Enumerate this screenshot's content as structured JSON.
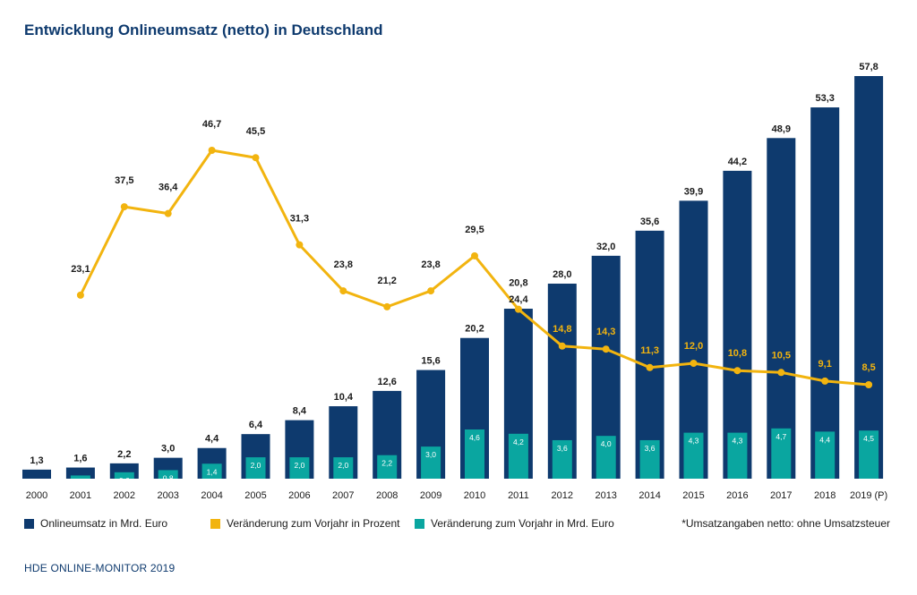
{
  "title": "Entwicklung Onlineumsatz (netto) in Deutschland",
  "colors": {
    "revenue": "#0e3a6e",
    "percent": "#f2b40f",
    "change": "#0aa6a0",
    "percent_label_on_bar": "#f2b40f"
  },
  "legend": {
    "revenue": "Onlineumsatz in Mrd. Euro",
    "percent": "Veränderung zum Vorjahr in Prozent",
    "change": "Veränderung zum Vorjahr in Mrd. Euro",
    "note": "*Umsatzangaben netto: ohne Umsatzsteuer"
  },
  "footer": "HDE ONLINE-MONITOR 2019",
  "chart_data": {
    "type": "bar",
    "title": "Entwicklung Onlineumsatz (netto) in Deutschland",
    "xlabel": "",
    "ylabel": "",
    "ylim": [
      0,
      60
    ],
    "grid": false,
    "legend_position": "bottom",
    "categories": [
      "2000",
      "2001",
      "2002",
      "2003",
      "2004",
      "2005",
      "2006",
      "2007",
      "2008",
      "2009",
      "2010",
      "2011",
      "2012",
      "2013",
      "2014",
      "2015",
      "2016",
      "2017",
      "2018",
      "2019 (P)"
    ],
    "series": [
      {
        "name": "Onlineumsatz in Mrd. Euro",
        "type": "bar",
        "values": [
          1.3,
          1.6,
          2.2,
          3.0,
          4.4,
          6.4,
          8.4,
          10.4,
          12.6,
          15.6,
          20.2,
          24.4,
          28.0,
          32.0,
          35.6,
          39.9,
          44.2,
          48.9,
          53.3,
          57.8
        ],
        "labels": [
          "1,3",
          "1,6",
          "2,2",
          "3,0",
          "4,4",
          "6,4",
          "8,4",
          "10,4",
          "12,6",
          "15,6",
          "20,2",
          "24,4",
          "28,0",
          "32,0",
          "35,6",
          "39,9",
          "44,2",
          "48,9",
          "53,3",
          "57,8"
        ]
      },
      {
        "name": "Veränderung zum Vorjahr in Mrd. Euro",
        "type": "bar",
        "values": [
          null,
          0.3,
          0.6,
          0.8,
          1.4,
          2.0,
          2.0,
          2.0,
          2.2,
          3.0,
          4.6,
          4.2,
          3.6,
          4.0,
          3.6,
          4.3,
          4.3,
          4.7,
          4.4,
          4.5
        ],
        "labels": [
          "",
          "0,3",
          "0,6",
          "0,8",
          "1,4",
          "2,0",
          "2,0",
          "2,0",
          "2,2",
          "3,0",
          "4,6",
          "4,2",
          "3,6",
          "4,0",
          "3,6",
          "4,3",
          "4,3",
          "4,7",
          "4,4",
          "4,5"
        ]
      },
      {
        "name": "Veränderung zum Vorjahr in Prozent",
        "type": "line",
        "values": [
          null,
          23.1,
          37.5,
          36.4,
          46.7,
          45.5,
          31.3,
          23.8,
          21.2,
          23.8,
          29.5,
          20.8,
          14.8,
          14.3,
          11.3,
          12.0,
          10.8,
          10.5,
          9.1,
          8.5
        ],
        "labels": [
          "",
          "23,1",
          "37,5",
          "36,4",
          "46,7",
          "45,5",
          "31,3",
          "23,8",
          "21,2",
          "23,8",
          "29,5",
          "20,8",
          "14,8",
          "14,3",
          "11,3",
          "12,0",
          "10,8",
          "10,5",
          "9,1",
          "8,5"
        ]
      }
    ]
  }
}
